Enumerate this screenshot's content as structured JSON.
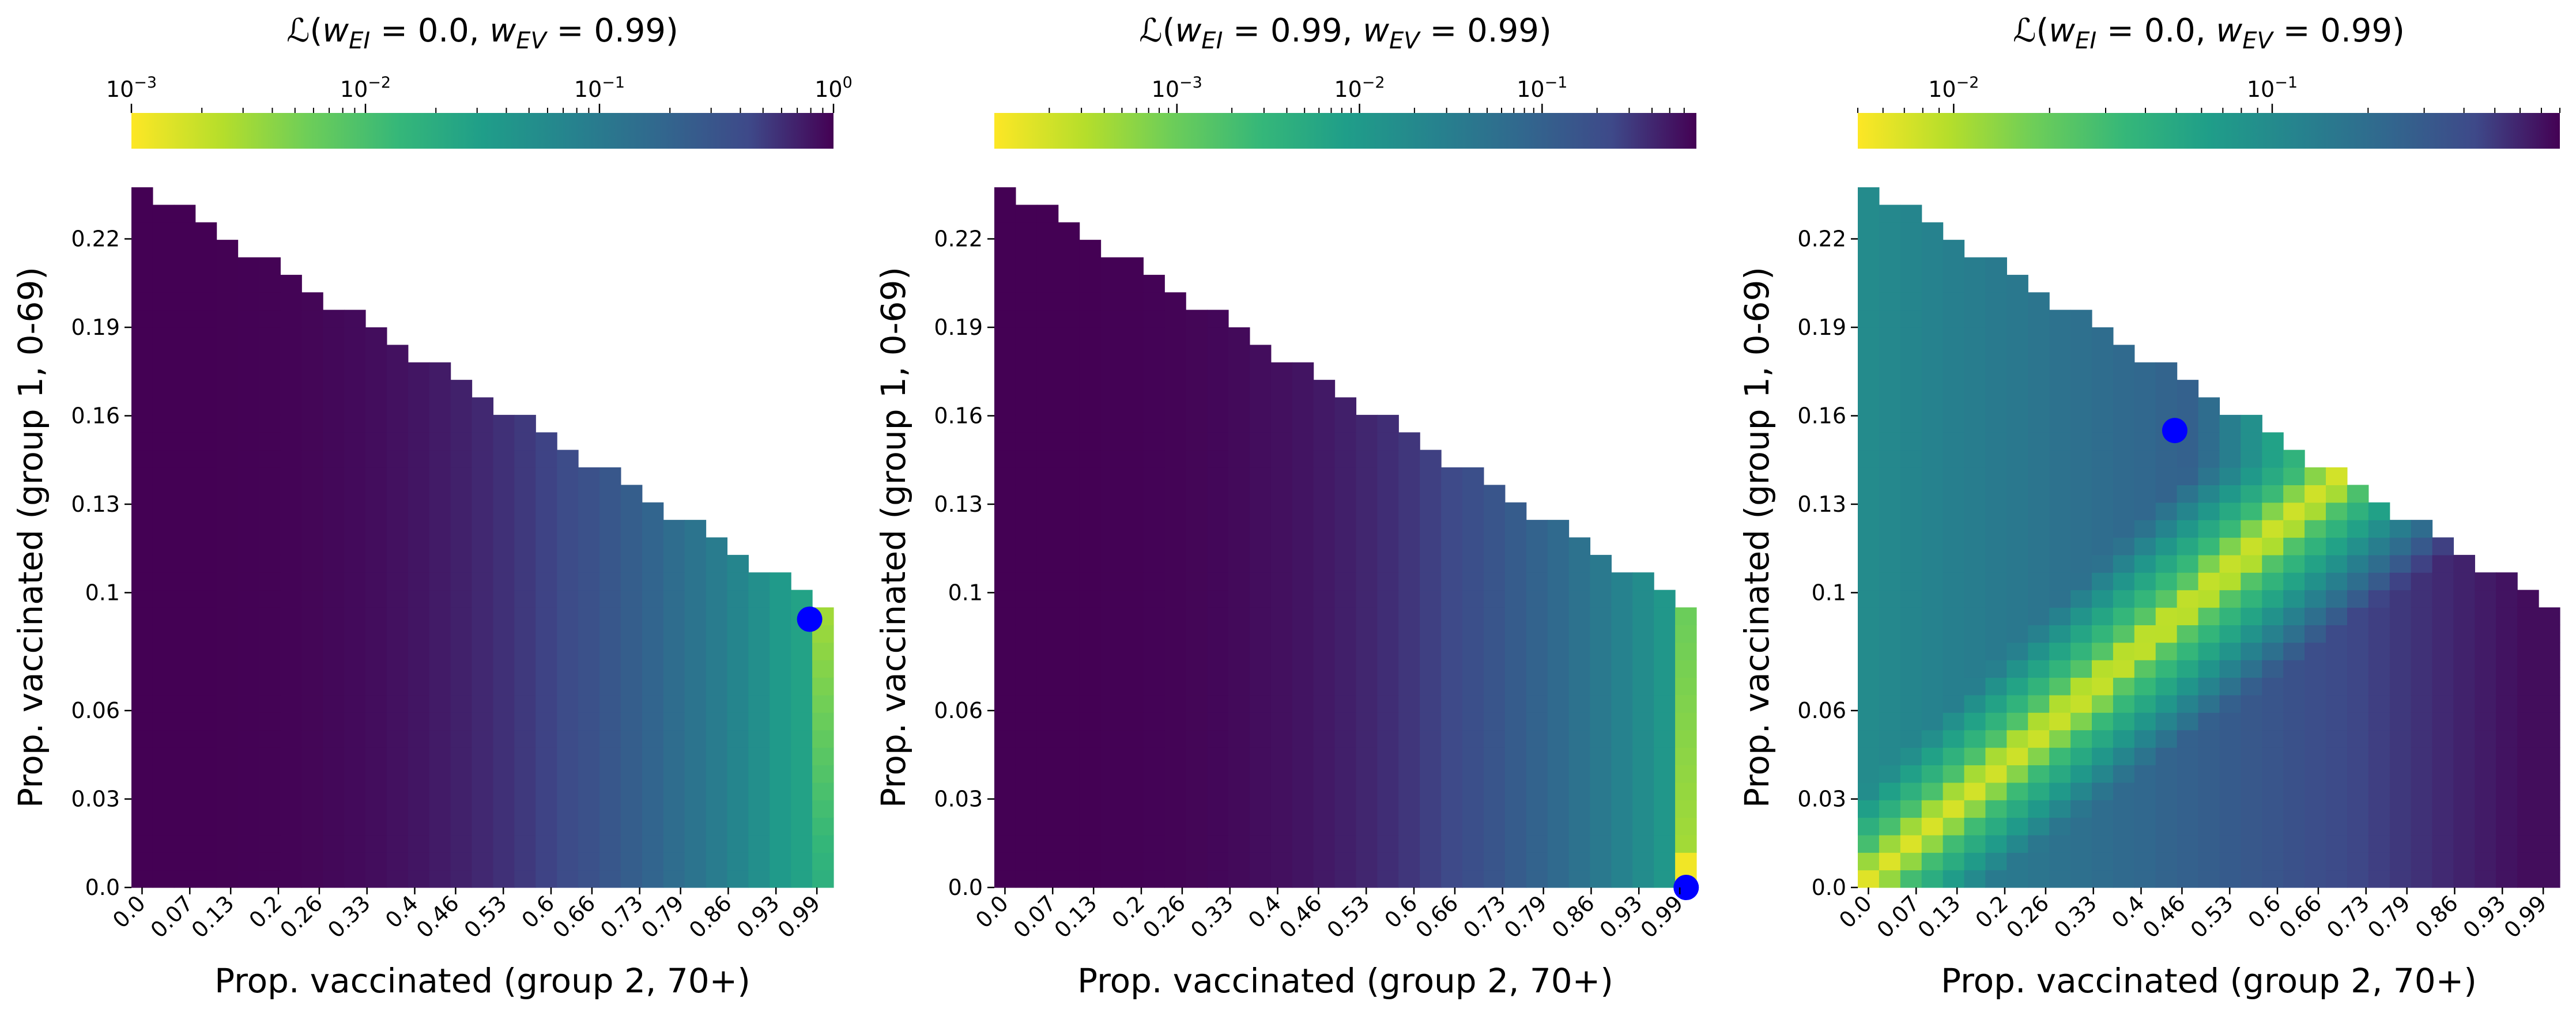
{
  "chart_data": [
    {
      "type": "heatmap",
      "title_prefix": "ℒ(",
      "title_var1": "w",
      "title_sub1": "EI",
      "title_val1": " = 0.0, ",
      "title_var2": "w",
      "title_sub2": "EV",
      "title_val2": " = 0.99)",
      "xlabel": "Prop. vaccinated (group 2, 70+)",
      "ylabel": "Prop. vaccinated (group 1, 0-69)",
      "xticks": [
        "0.0",
        "0.07",
        "0.13",
        "0.2",
        "0.26",
        "0.33",
        "0.4",
        "0.46",
        "0.53",
        "0.6",
        "0.66",
        "0.73",
        "0.79",
        "0.86",
        "0.93",
        "0.99"
      ],
      "yticks": [
        "0.0",
        "0.03",
        "0.06",
        "0.1",
        "0.13",
        "0.16",
        "0.19",
        "0.22"
      ],
      "colorbar": {
        "scale": "log",
        "range": [
          0.001,
          1
        ],
        "major_ticks": [
          {
            "value": 0.001,
            "base": "10",
            "exp": "−3"
          },
          {
            "value": 0.01,
            "base": "10",
            "exp": "−2"
          },
          {
            "value": 0.1,
            "base": "10",
            "exp": "−1"
          },
          {
            "value": 1,
            "base": "10",
            "exp": "0"
          }
        ]
      },
      "colormap": "viridis_r",
      "pattern": "rising_with_x",
      "marker": {
        "x": 0.995,
        "y": 0.091,
        "color": "#0000ff"
      }
    },
    {
      "type": "heatmap",
      "title_prefix": "ℒ(",
      "title_var1": "w",
      "title_sub1": "EI",
      "title_val1": " = 0.99, ",
      "title_var2": "w",
      "title_sub2": "EV",
      "title_val2": " = 0.99)",
      "xlabel": "Prop. vaccinated (group 2, 70+)",
      "ylabel": "Prop. vaccinated (group 1, 0-69)",
      "xticks": [
        "0.0",
        "0.07",
        "0.13",
        "0.2",
        "0.26",
        "0.33",
        "0.4",
        "0.46",
        "0.53",
        "0.6",
        "0.66",
        "0.73",
        "0.79",
        "0.86",
        "0.93",
        "0.99"
      ],
      "yticks": [
        "0.0",
        "0.03",
        "0.06",
        "0.1",
        "0.13",
        "0.16",
        "0.19",
        "0.22"
      ],
      "colorbar": {
        "scale": "log",
        "range": [
          0.0001,
          0.7
        ],
        "major_ticks": [
          {
            "value": 0.001,
            "base": "10",
            "exp": "−3"
          },
          {
            "value": 0.01,
            "base": "10",
            "exp": "−2"
          },
          {
            "value": 0.1,
            "base": "10",
            "exp": "−1"
          }
        ]
      },
      "colormap": "viridis_r",
      "pattern": "rising_with_x_min_corner",
      "marker": {
        "x": 1.015,
        "y": 0.0,
        "color": "#0000ff"
      }
    },
    {
      "type": "heatmap",
      "title_prefix": "ℒ(",
      "title_var1": "w",
      "title_sub1": "EI",
      "title_val1": " = 0.0, ",
      "title_var2": "w",
      "title_sub2": "EV",
      "title_val2": " = 0.99)",
      "xlabel": "Prop. vaccinated (group 2, 70+)",
      "ylabel": "Prop. vaccinated (group 1, 0-69)",
      "xticks": [
        "0.0",
        "0.07",
        "0.13",
        "0.2",
        "0.26",
        "0.33",
        "0.4",
        "0.46",
        "0.53",
        "0.6",
        "0.66",
        "0.73",
        "0.79",
        "0.86",
        "0.93",
        "0.99"
      ],
      "yticks": [
        "0.0",
        "0.03",
        "0.06",
        "0.1",
        "0.13",
        "0.16",
        "0.19",
        "0.22"
      ],
      "colorbar": {
        "scale": "log",
        "range": [
          0.005,
          0.8
        ],
        "major_ticks": [
          {
            "value": 0.01,
            "base": "10",
            "exp": "−2"
          },
          {
            "value": 0.1,
            "base": "10",
            "exp": "−1"
          }
        ]
      },
      "colormap": "viridis_r",
      "pattern": "diagonal_valley",
      "marker": {
        "x": 0.465,
        "y": 0.155,
        "color": "#0000ff"
      }
    }
  ]
}
